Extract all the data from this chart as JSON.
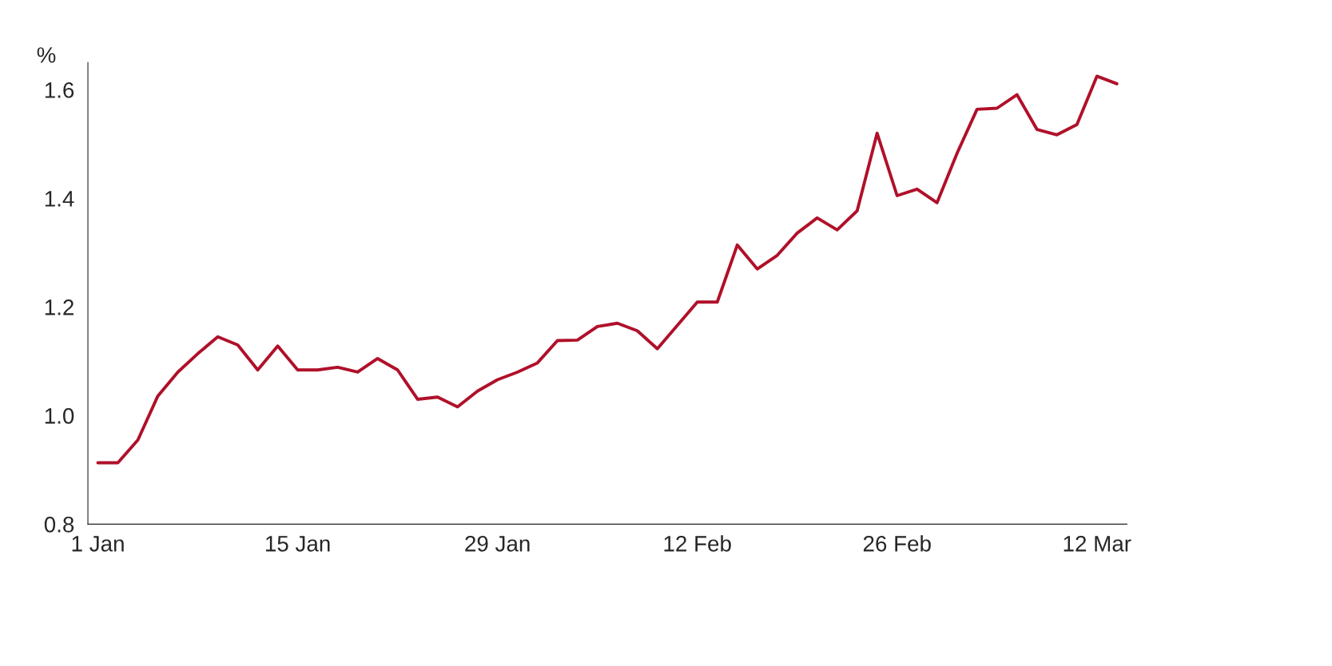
{
  "chart_data": {
    "type": "line",
    "ylabel": "%",
    "categories": [
      "1 Jan",
      null,
      null,
      null,
      null,
      null,
      null,
      null,
      null,
      null,
      "15 Jan",
      null,
      null,
      null,
      null,
      null,
      null,
      null,
      null,
      null,
      "29 Jan",
      null,
      null,
      null,
      null,
      null,
      null,
      null,
      null,
      null,
      "12 Feb",
      null,
      null,
      null,
      null,
      null,
      null,
      null,
      null,
      null,
      "26 Feb",
      null,
      null,
      null,
      null,
      null,
      null,
      null,
      null,
      null,
      "12 Mar",
      null
    ],
    "series": [
      {
        "color": "#b0102a",
        "values": [
          0.913,
          0.913,
          0.955,
          1.036,
          1.08,
          1.114,
          1.145,
          1.13,
          1.084,
          1.128,
          1.084,
          1.084,
          1.089,
          1.08,
          1.105,
          1.084,
          1.03,
          1.034,
          1.016,
          1.045,
          1.066,
          1.08,
          1.097,
          1.138,
          1.139,
          1.164,
          1.17,
          1.156,
          1.123,
          1.166,
          1.209,
          1.209,
          1.314,
          1.27,
          1.295,
          1.336,
          1.364,
          1.342,
          1.377,
          1.52,
          1.405,
          1.417,
          1.392,
          1.483,
          1.564,
          1.566,
          1.591,
          1.527,
          1.517,
          1.536,
          1.625,
          1.611
        ]
      }
    ],
    "ylim": [
      0.8,
      1.65
    ],
    "yticks": [
      {
        "value": 0.8,
        "label": "0.8"
      },
      {
        "value": 1.0,
        "label": "1.0"
      },
      {
        "value": 1.2,
        "label": "1.2"
      },
      {
        "value": 1.4,
        "label": "1.4"
      },
      {
        "value": 1.6,
        "label": "1.6"
      }
    ],
    "grid": false,
    "legend": false,
    "marker": "none",
    "line_style": "solid"
  }
}
